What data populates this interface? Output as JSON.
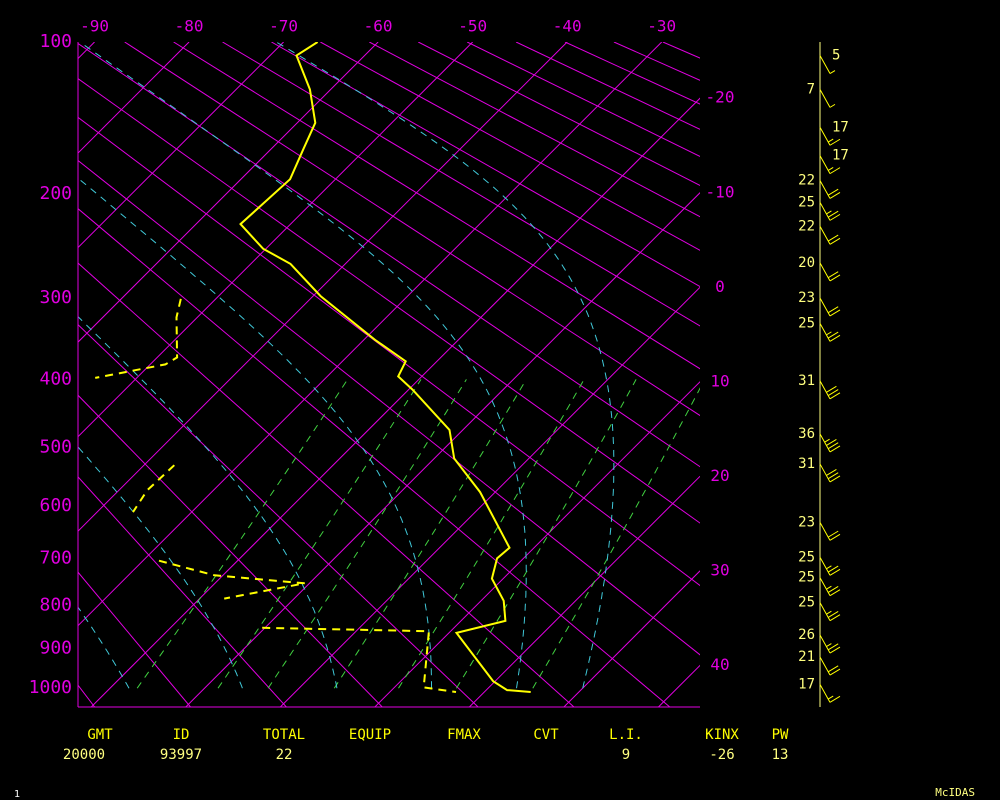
{
  "chart_data": {
    "type": "skewt",
    "ylim": [
      100,
      1050
    ],
    "yticks": [
      100,
      200,
      300,
      400,
      500,
      600,
      700,
      800,
      900,
      1000
    ],
    "xlim": [
      -21.4,
      44.4
    ],
    "xticks": [
      -90,
      -80,
      -70,
      -60,
      -50,
      -40,
      -30,
      -20,
      -10,
      0,
      10,
      20,
      30,
      40
    ],
    "grid_color": "#e000e0",
    "series": [
      {
        "color": "#ffff00",
        "dashed": false,
        "pressure": [
          100,
          107,
          126,
          147,
          165,
          188,
          226,
          249,
          264,
          298,
          349,
          376,
          396,
          414,
          473,
          518,
          575,
          679,
          700,
          742,
          790,
          835,
          863,
          982,
          1005,
          1010
        ],
        "values": [
          -66.4,
          -67.2,
          -62.2,
          -58.1,
          -56.6,
          -54.8,
          -55.3,
          -50.3,
          -45.8,
          -39.2,
          -28.8,
          -23.3,
          -22.5,
          -19.6,
          -11.4,
          -7.9,
          -1.6,
          7.4,
          7.2,
          8.8,
          12.4,
          14.7,
          10.8,
          19.8,
          22.2,
          24.9
        ]
      },
      {
        "color": "#ffff00",
        "dashed": true,
        "pressure": [
          301,
          322,
          371,
          380,
          398,
          null,
          529,
          572,
          611,
          null,
          705,
          735,
          752,
          785,
          null,
          851,
          859,
          998,
          1010
        ],
        "values": [
          -53.7,
          -52.2,
          -47.9,
          -48.4,
          -54.4,
          null,
          -36.8,
          -37.0,
          -36.2,
          null,
          -28.3,
          -20.9,
          -10.5,
          -17.4,
          null,
          -10.3,
          7.7,
          13.1,
          17.0
        ]
      }
    ],
    "winds": {
      "color": "#ffff00",
      "pressure": [
        107,
        126,
        150,
        170,
        189,
        207,
        228,
        263,
        300,
        329,
        402,
        479,
        527,
        630,
        698,
        740,
        794,
        868,
        921,
        990
      ],
      "speed": [
        5,
        7,
        17,
        17,
        22,
        25,
        22,
        20,
        23,
        25,
        31,
        36,
        31,
        23,
        25,
        25,
        25,
        26,
        21,
        17
      ]
    },
    "stats": [
      {
        "label": "GMT",
        "value": 20000
      },
      {
        "label": "ID",
        "value": 93997
      },
      {
        "label": "TOTAL",
        "value": 22
      },
      {
        "label": "EQUIP"
      },
      {
        "label": "FMAX"
      },
      {
        "label": "CVT"
      },
      {
        "label": "L.I.",
        "value": 9
      },
      {
        "label": "KINX",
        "value": -26
      },
      {
        "label": "PW",
        "value": 13
      }
    ],
    "frame_number": 1,
    "brand": "McIDAS"
  }
}
